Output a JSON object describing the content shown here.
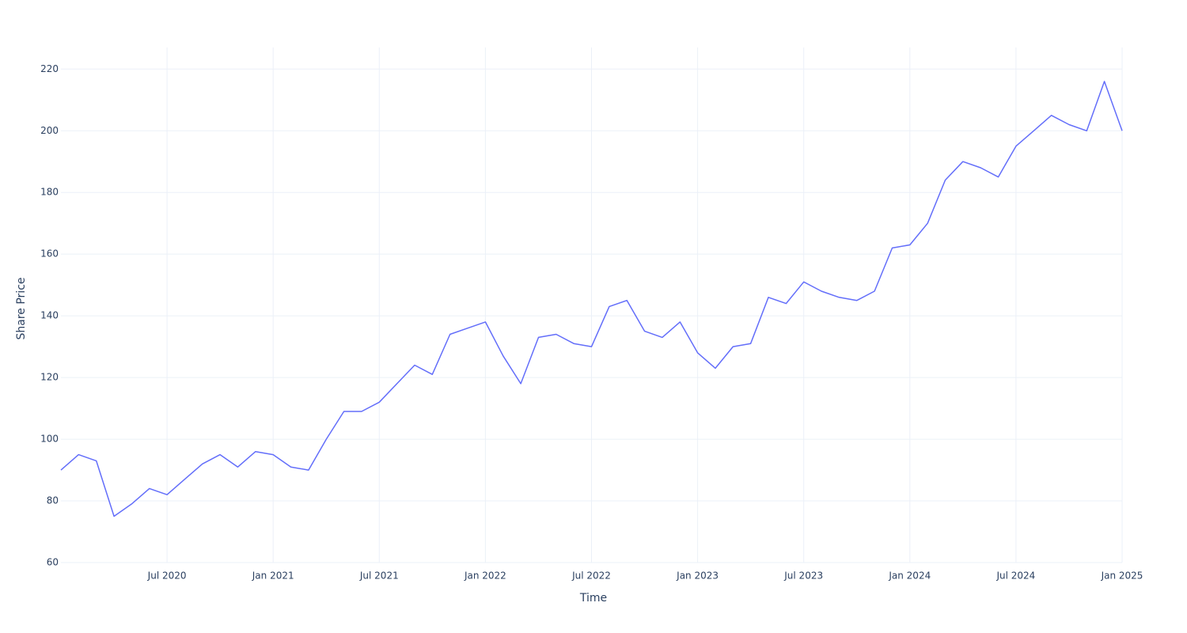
{
  "chart_data": {
    "type": "line",
    "x_label": "Time",
    "y_label": "Share Price",
    "x": [
      "2020-01",
      "2020-02",
      "2020-03",
      "2020-04",
      "2020-05",
      "2020-06",
      "2020-07",
      "2020-08",
      "2020-09",
      "2020-10",
      "2020-11",
      "2020-12",
      "2021-01",
      "2021-02",
      "2021-03",
      "2021-04",
      "2021-05",
      "2021-06",
      "2021-07",
      "2021-08",
      "2021-09",
      "2021-10",
      "2021-11",
      "2021-12",
      "2022-01",
      "2022-02",
      "2022-03",
      "2022-04",
      "2022-05",
      "2022-06",
      "2022-07",
      "2022-08",
      "2022-09",
      "2022-10",
      "2022-11",
      "2022-12",
      "2023-01",
      "2023-02",
      "2023-03",
      "2023-04",
      "2023-05",
      "2023-06",
      "2023-07",
      "2023-08",
      "2023-09",
      "2023-10",
      "2023-11",
      "2023-12",
      "2024-01",
      "2024-02",
      "2024-03",
      "2024-04",
      "2024-05",
      "2024-06",
      "2024-07",
      "2024-08",
      "2024-09",
      "2024-10",
      "2024-11",
      "2024-12",
      "2025-01"
    ],
    "series": [
      {
        "name": "Share Price",
        "color": "#636efa",
        "values": [
          90,
          95,
          93,
          75,
          79,
          84,
          82,
          87,
          92,
          95,
          91,
          96,
          95,
          91,
          90,
          100,
          109,
          109,
          112,
          118,
          124,
          121,
          134,
          136,
          138,
          127,
          118,
          133,
          134,
          131,
          130,
          143,
          145,
          135,
          133,
          138,
          128,
          123,
          130,
          131,
          146,
          144,
          151,
          148,
          146,
          145,
          148,
          162,
          163,
          170,
          184,
          190,
          188,
          185,
          195,
          200,
          205,
          202,
          200,
          216,
          200
        ]
      }
    ],
    "xlim": [
      "2020-01",
      "2025-01"
    ],
    "xticks": [
      {
        "value": "2020-07",
        "label": "Jul 2020"
      },
      {
        "value": "2021-01",
        "label": "Jan 2021"
      },
      {
        "value": "2021-07",
        "label": "Jul 2021"
      },
      {
        "value": "2022-01",
        "label": "Jan 2022"
      },
      {
        "value": "2022-07",
        "label": "Jul 2022"
      },
      {
        "value": "2023-01",
        "label": "Jan 2023"
      },
      {
        "value": "2023-07",
        "label": "Jul 2023"
      },
      {
        "value": "2024-01",
        "label": "Jan 2024"
      },
      {
        "value": "2024-07",
        "label": "Jul 2024"
      },
      {
        "value": "2025-01",
        "label": "Jan 2025"
      }
    ],
    "ylim": [
      60,
      227
    ],
    "yticks": [
      60,
      80,
      100,
      120,
      140,
      160,
      180,
      200,
      220
    ],
    "grid": true
  }
}
